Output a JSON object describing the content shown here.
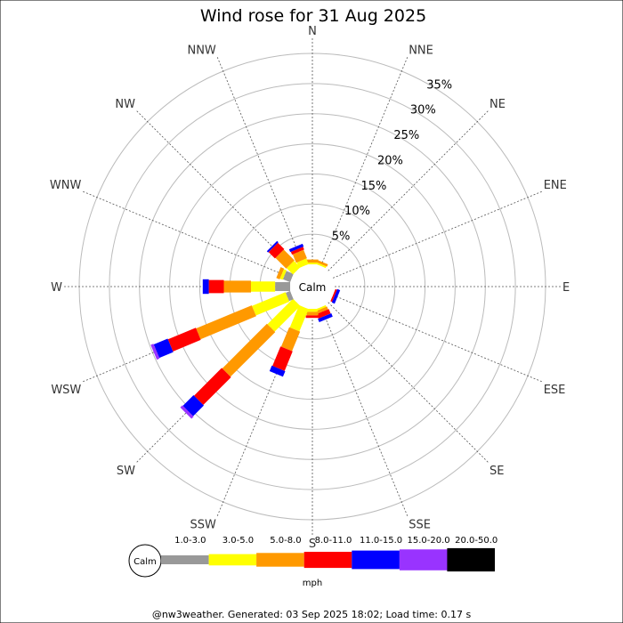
{
  "chart_data": {
    "type": "wind-rose",
    "title": "Wind rose for 31 Aug 2025",
    "directions": [
      "N",
      "NNE",
      "NE",
      "ENE",
      "E",
      "ESE",
      "SE",
      "SSE",
      "S",
      "SSW",
      "SW",
      "WSW",
      "W",
      "WNW",
      "NW",
      "NNW"
    ],
    "ring_labels": [
      "5%",
      "10%",
      "15%",
      "20%",
      "25%",
      "30%",
      "35%"
    ],
    "r_max_percent": 35,
    "calm_label": "Calm",
    "unit": "mph",
    "bins": [
      {
        "label": "1.0-3.0",
        "color": "#999999"
      },
      {
        "label": "3.0-5.0",
        "color": "#ffff00"
      },
      {
        "label": "5.0-8.0",
        "color": "#ff9900"
      },
      {
        "label": "8.0-11.0",
        "color": "#ff0000"
      },
      {
        "label": "11.0-15.0",
        "color": "#0000ff"
      },
      {
        "label": "15.0-20.0",
        "color": "#9933ff"
      },
      {
        "label": "20.0-50.0",
        "color": "#000000"
      }
    ],
    "series": [
      {
        "direction": "N",
        "values": [
          0,
          0.3,
          0.5,
          0,
          0,
          0,
          0
        ]
      },
      {
        "direction": "NNE",
        "values": [
          0,
          0.3,
          0.4,
          0,
          0,
          0,
          0
        ]
      },
      {
        "direction": "NE",
        "values": [
          0,
          0,
          0,
          0,
          0,
          0,
          0
        ]
      },
      {
        "direction": "ENE",
        "values": [
          0,
          0,
          0,
          0,
          0,
          0,
          0
        ]
      },
      {
        "direction": "E",
        "values": [
          0,
          0,
          0,
          0,
          0,
          0,
          0
        ]
      },
      {
        "direction": "ESE",
        "values": [
          0,
          0,
          0,
          0.3,
          0.5,
          0,
          0
        ]
      },
      {
        "direction": "SE",
        "values": [
          0,
          0,
          0,
          0,
          0,
          0,
          0
        ]
      },
      {
        "direction": "SSE",
        "values": [
          0,
          0.3,
          0.5,
          0.8,
          0.6,
          0,
          0
        ]
      },
      {
        "direction": "S",
        "values": [
          0,
          0.5,
          0.6,
          0.4,
          0,
          0,
          0
        ]
      },
      {
        "direction": "SSW",
        "values": [
          0,
          4.0,
          3.5,
          3.5,
          1.0,
          0,
          0
        ]
      },
      {
        "direction": "SW",
        "values": [
          0,
          6.0,
          10.5,
          6.5,
          2.5,
          0.5,
          0
        ]
      },
      {
        "direction": "WSW",
        "values": [
          0.8,
          6.0,
          10.0,
          5.0,
          2.5,
          0.5,
          0
        ]
      },
      {
        "direction": "W",
        "values": [
          2.5,
          4.0,
          4.5,
          2.5,
          1.0,
          0,
          0
        ]
      },
      {
        "direction": "WNW",
        "values": [
          1.3,
          0.5,
          0.6,
          0,
          0,
          0,
          0
        ]
      },
      {
        "direction": "NW",
        "values": [
          0,
          1.5,
          2.5,
          1.5,
          0.3,
          0,
          0
        ]
      },
      {
        "direction": "NNW",
        "values": [
          0,
          1.0,
          1.5,
          0.5,
          0.5,
          0,
          0
        ]
      }
    ],
    "footer": "@nw3weather. Generated: 03 Sep 2025 18:02; Load time: 0.17 s"
  }
}
